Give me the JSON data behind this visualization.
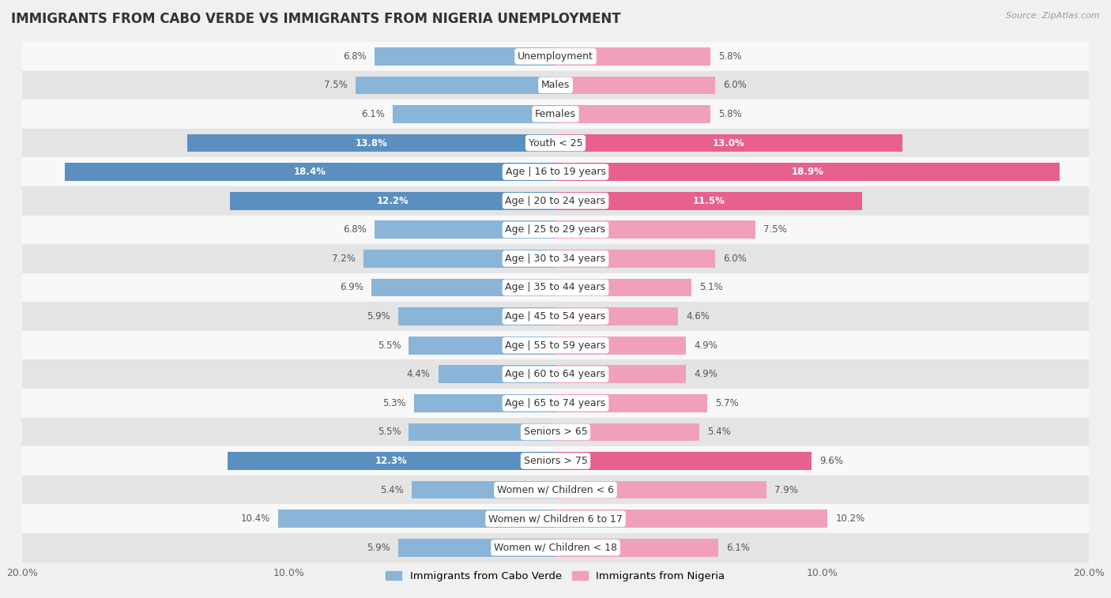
{
  "title": "IMMIGRANTS FROM CABO VERDE VS IMMIGRANTS FROM NIGERIA UNEMPLOYMENT",
  "source": "Source: ZipAtlas.com",
  "categories": [
    "Unemployment",
    "Males",
    "Females",
    "Youth < 25",
    "Age | 16 to 19 years",
    "Age | 20 to 24 years",
    "Age | 25 to 29 years",
    "Age | 30 to 34 years",
    "Age | 35 to 44 years",
    "Age | 45 to 54 years",
    "Age | 55 to 59 years",
    "Age | 60 to 64 years",
    "Age | 65 to 74 years",
    "Seniors > 65",
    "Seniors > 75",
    "Women w/ Children < 6",
    "Women w/ Children 6 to 17",
    "Women w/ Children < 18"
  ],
  "cabo_verde": [
    6.8,
    7.5,
    6.1,
    13.8,
    18.4,
    12.2,
    6.8,
    7.2,
    6.9,
    5.9,
    5.5,
    4.4,
    5.3,
    5.5,
    12.3,
    5.4,
    10.4,
    5.9
  ],
  "nigeria": [
    5.8,
    6.0,
    5.8,
    13.0,
    18.9,
    11.5,
    7.5,
    6.0,
    5.1,
    4.6,
    4.9,
    4.9,
    5.7,
    5.4,
    9.6,
    7.9,
    10.2,
    6.1
  ],
  "cabo_verde_color": "#8ab4d8",
  "nigeria_color": "#f0a0bc",
  "cabo_verde_highlight_color": "#5a8fc0",
  "nigeria_highlight_color": "#e8608c",
  "highlight_rows": [
    3,
    4,
    5,
    14
  ],
  "bg_color": "#f0f0f0",
  "row_bg_light": "#f8f8f8",
  "row_bg_dark": "#e4e4e4",
  "xlim": 20.0,
  "legend_cabo": "Immigrants from Cabo Verde",
  "legend_nigeria": "Immigrants from Nigeria",
  "title_fontsize": 12,
  "label_fontsize": 9,
  "value_fontsize": 8.5
}
